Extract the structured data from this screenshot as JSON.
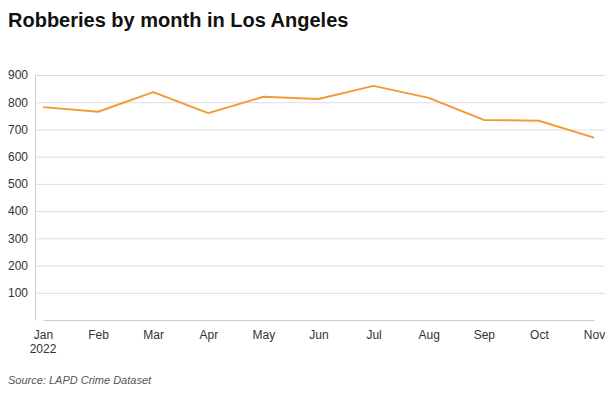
{
  "chart_data": {
    "type": "line",
    "title": "Robberies by month in Los Angeles",
    "categories": [
      "Jan",
      "Feb",
      "Mar",
      "Apr",
      "May",
      "Jun",
      "Jul",
      "Aug",
      "Sep",
      "Oct",
      "Nov"
    ],
    "values": [
      782,
      765,
      837,
      760,
      820,
      812,
      860,
      816,
      735,
      732,
      670
    ],
    "color": "#f39a33",
    "ylim": [
      0,
      900
    ],
    "yticks": [
      100,
      200,
      300,
      400,
      500,
      600,
      700,
      800,
      900
    ],
    "grid": true,
    "annotations": [
      "2022"
    ],
    "source": "Source: LAPD Crime Dataset"
  }
}
